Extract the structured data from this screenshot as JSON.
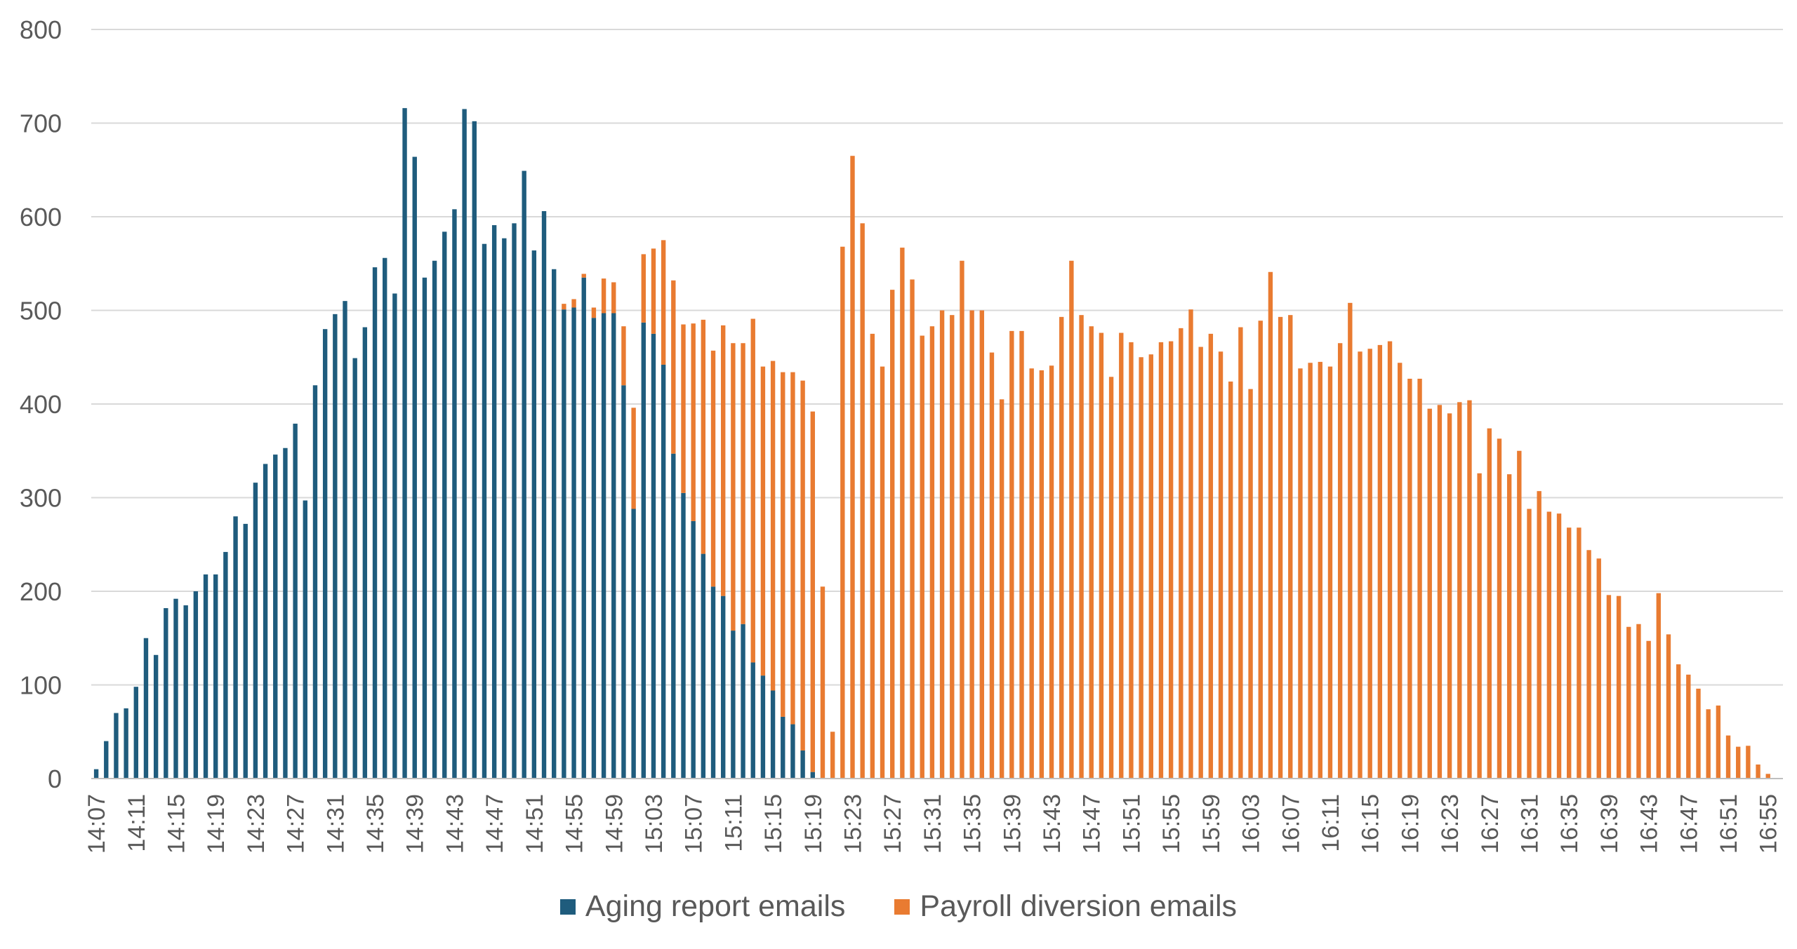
{
  "chart_data": {
    "type": "bar",
    "stacked": true,
    "title": "",
    "xlabel": "",
    "ylabel": "",
    "ylim": [
      0,
      800
    ],
    "y_ticks": [
      0,
      100,
      200,
      300,
      400,
      500,
      600,
      700,
      800
    ],
    "grid": true,
    "legend_position": "bottom",
    "x_start": "14:07",
    "x_end": "16:56",
    "x_tick_labels": [
      "14:07",
      "14:11",
      "14:15",
      "14:19",
      "14:23",
      "14:27",
      "14:31",
      "14:35",
      "14:39",
      "14:43",
      "14:47",
      "14:51",
      "14:55",
      "14:59",
      "15:03",
      "15:07",
      "15:11",
      "15:15",
      "15:19",
      "15:23",
      "15:27",
      "15:31",
      "15:35",
      "15:39",
      "15:43",
      "15:47",
      "15:51",
      "15:55",
      "15:59",
      "16:03",
      "16:07",
      "16:11",
      "16:15",
      "16:19",
      "16:23",
      "16:27",
      "16:31",
      "16:35",
      "16:39",
      "16:43",
      "16:47",
      "16:51",
      "16:55"
    ],
    "series": [
      {
        "name": "Aging report emails",
        "color": "#1F5C7D",
        "values": [
          10,
          40,
          70,
          75,
          98,
          150,
          132,
          182,
          192,
          185,
          200,
          218,
          218,
          242,
          280,
          272,
          316,
          336,
          346,
          353,
          379,
          297,
          420,
          480,
          496,
          510,
          449,
          482,
          546,
          556,
          518,
          716,
          664,
          535,
          553,
          584,
          608,
          715,
          702,
          571,
          591,
          577,
          593,
          649,
          564,
          606,
          544,
          501,
          503,
          535,
          492,
          497,
          497,
          420,
          288,
          487,
          475,
          442,
          347,
          305,
          275,
          240,
          205,
          195,
          158,
          165,
          124,
          110,
          94,
          66,
          58,
          30,
          7,
          0,
          0,
          0,
          0,
          0,
          0,
          0,
          0,
          0,
          0,
          0,
          0,
          0,
          0,
          0,
          0,
          0,
          0,
          0,
          0,
          0,
          0,
          0,
          0,
          0,
          0,
          0,
          0,
          0,
          0,
          0,
          0,
          0,
          0,
          0,
          0,
          0,
          0,
          0,
          0,
          0,
          0,
          0,
          0,
          0,
          0,
          0,
          0,
          0,
          0,
          0,
          0,
          0,
          0,
          0,
          0,
          0,
          0,
          0,
          0,
          0,
          0,
          0,
          0,
          0,
          0,
          0,
          0,
          0,
          0,
          0,
          0,
          0,
          0,
          0,
          0,
          0,
          0,
          0,
          0,
          0,
          0,
          0,
          0,
          0,
          0,
          0,
          0,
          0,
          0,
          0,
          0,
          0,
          0,
          0,
          0,
          0
        ]
      },
      {
        "name": "Payroll diversion emails",
        "color": "#E97B31",
        "values": [
          0,
          0,
          0,
          0,
          0,
          0,
          0,
          0,
          0,
          0,
          0,
          0,
          0,
          0,
          0,
          0,
          0,
          0,
          0,
          0,
          0,
          0,
          0,
          0,
          0,
          0,
          0,
          0,
          0,
          0,
          0,
          0,
          0,
          0,
          0,
          0,
          0,
          0,
          0,
          0,
          0,
          0,
          0,
          0,
          0,
          0,
          0,
          6,
          9,
          4,
          11,
          37,
          33,
          63,
          108,
          73,
          91,
          133,
          185,
          180,
          211,
          250,
          252,
          289,
          307,
          300,
          367,
          330,
          352,
          368,
          376,
          395,
          385,
          205,
          50,
          568,
          665,
          593,
          475,
          440,
          522,
          567,
          533,
          473,
          483,
          500,
          495,
          553,
          500,
          500,
          455,
          405,
          478,
          478,
          438,
          436,
          441,
          493,
          553,
          495,
          483,
          476,
          429,
          476,
          466,
          450,
          453,
          466,
          467,
          481,
          501,
          461,
          475,
          456,
          424,
          482,
          416,
          489,
          541,
          493,
          495,
          438,
          444,
          445,
          440,
          465,
          508,
          456,
          459,
          463,
          467,
          444,
          427,
          427,
          395,
          399,
          390,
          402,
          404,
          326,
          374,
          363,
          325,
          350,
          288,
          307,
          285,
          283,
          268,
          268,
          244,
          235,
          196,
          195,
          162,
          165,
          147,
          198,
          154,
          122,
          111,
          96,
          74,
          78,
          46,
          34,
          35,
          15,
          5,
          0,
          3
        ]
      }
    ]
  }
}
